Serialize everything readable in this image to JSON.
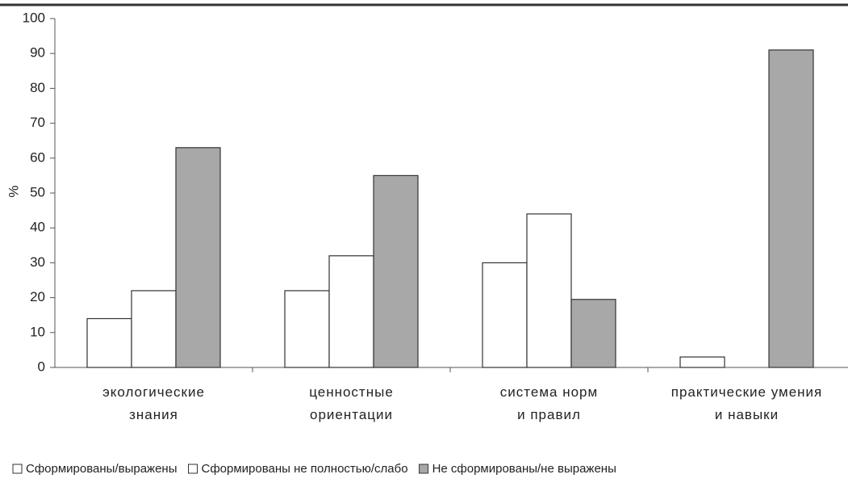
{
  "chart_data": {
    "type": "bar",
    "y_label": "%",
    "categories": [
      "экологические знания",
      "ценностные ориентации",
      "система норм и правил",
      "практические умения и навыки"
    ],
    "series": [
      {
        "name": "Сформированы/выражены",
        "color": "#ffffff",
        "values": [
          14,
          22,
          30,
          3
        ]
      },
      {
        "name": "Сформированы не полностью/слабо",
        "color": "#ffffff",
        "values": [
          22,
          32,
          44,
          0
        ]
      },
      {
        "name": "Не сформированы/не выражены",
        "color": "#a8a8a8",
        "values": [
          63,
          55,
          19.5,
          91
        ]
      }
    ],
    "ylim": [
      0,
      100
    ],
    "yticks": [
      0,
      10,
      20,
      30,
      40,
      50,
      60,
      70,
      80,
      90,
      100
    ],
    "grid": false,
    "legend": "bottom"
  }
}
